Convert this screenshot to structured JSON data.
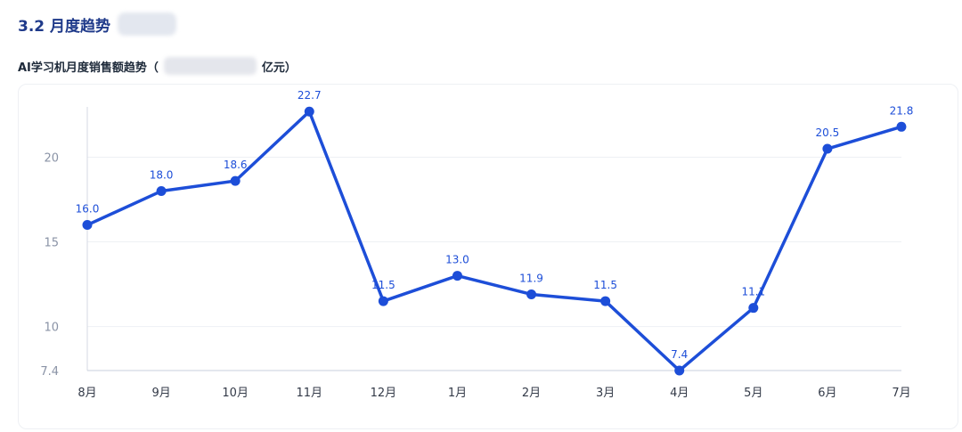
{
  "section": {
    "title": "3.2 月度趋势"
  },
  "chart_data": {
    "type": "line",
    "title": "AI学习机月度销售额趋势（",
    "title_suffix": "亿元）",
    "categories": [
      "8月",
      "9月",
      "10月",
      "11月",
      "12月",
      "1月",
      "2月",
      "3月",
      "4月",
      "5月",
      "6月",
      "7月"
    ],
    "values": [
      16.0,
      18.0,
      18.6,
      22.7,
      11.5,
      13.0,
      11.9,
      11.5,
      7.4,
      11.1,
      20.5,
      21.8
    ],
    "data_labels": [
      "16.0",
      "18.0",
      "18.6",
      "22.7",
      "11.5",
      "13.0",
      "11.9",
      "11.5",
      "7.4",
      "11.1",
      "20.5",
      "21.8"
    ],
    "y_ticks": [
      {
        "value": 7.4,
        "label": "7.4"
      },
      {
        "value": 10,
        "label": "10"
      },
      {
        "value": 15,
        "label": "15"
      },
      {
        "value": 20,
        "label": "20"
      }
    ],
    "ylim": [
      7.4,
      23.5
    ],
    "xlabel": "",
    "ylabel": "",
    "grid": true,
    "line_color": "#1d4ed8"
  }
}
